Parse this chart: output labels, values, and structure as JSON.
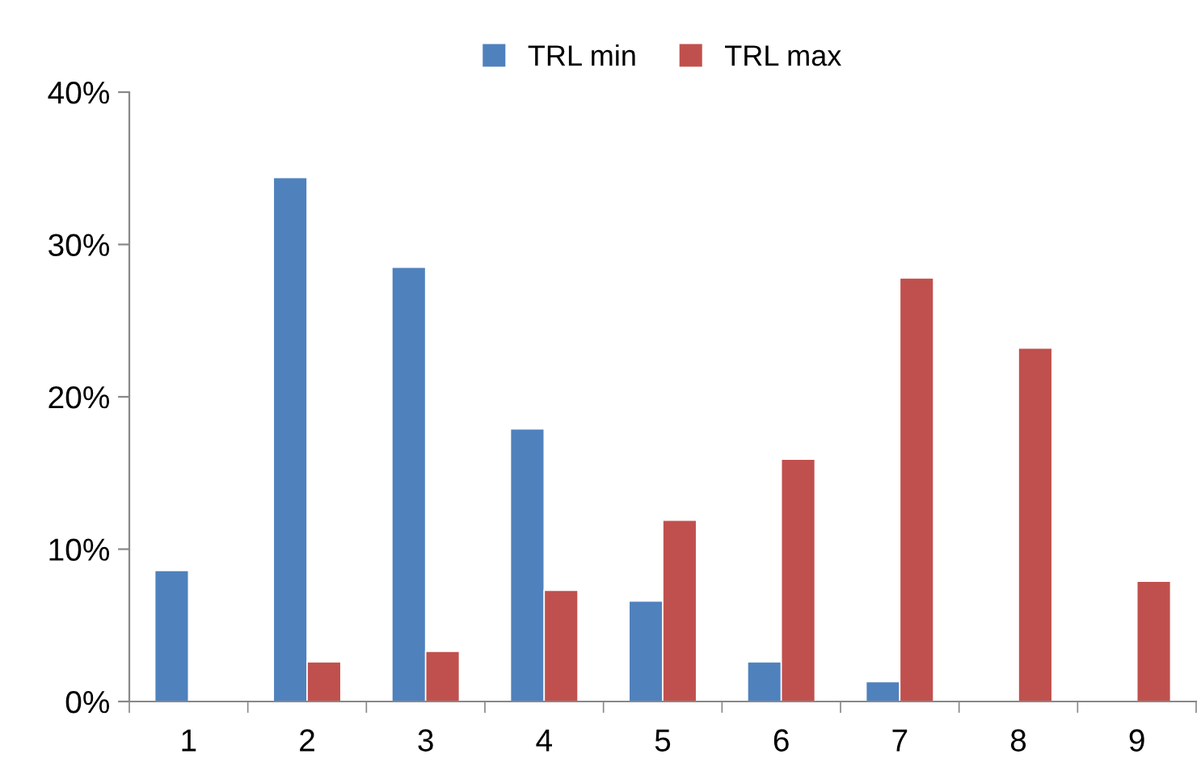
{
  "chart_data": {
    "type": "bar",
    "categories": [
      "1",
      "2",
      "3",
      "4",
      "5",
      "6",
      "7",
      "8",
      "9"
    ],
    "series": [
      {
        "name": "TRL min",
        "color": "#4f81bd",
        "values": [
          8.6,
          34.4,
          28.5,
          17.9,
          6.6,
          2.6,
          1.3,
          null,
          null
        ]
      },
      {
        "name": "TRL max",
        "color": "#c0504d",
        "values": [
          null,
          2.6,
          3.3,
          7.3,
          11.9,
          15.9,
          27.8,
          23.2,
          7.9
        ]
      }
    ],
    "ylim": [
      0,
      40
    ],
    "yticks": [
      {
        "value": 0,
        "label": "0%"
      },
      {
        "value": 10,
        "label": "10%"
      },
      {
        "value": 20,
        "label": "20%"
      },
      {
        "value": 30,
        "label": "30%"
      },
      {
        "value": 40,
        "label": "40%"
      }
    ],
    "grid": false,
    "legend": "top"
  }
}
